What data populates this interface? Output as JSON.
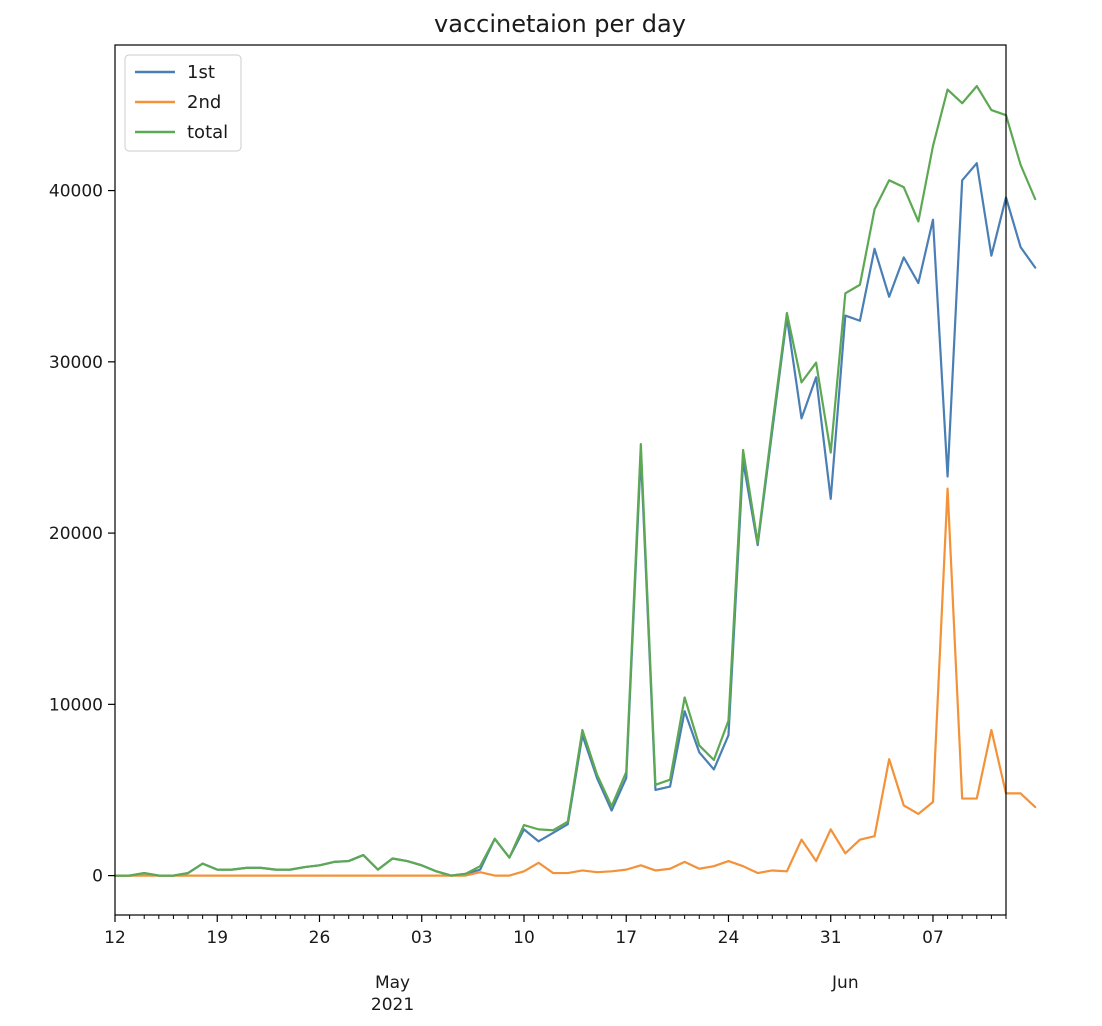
{
  "chart_data": {
    "type": "line",
    "title": "vaccinetaion per day",
    "xlabel": "",
    "ylabel": "",
    "x_start": "2021-04-12",
    "xlim": [
      "2021-04-12",
      "2021-06-12"
    ],
    "ylim": [
      -2300,
      48500
    ],
    "y_ticks": [
      0,
      10000,
      20000,
      30000,
      40000
    ],
    "y_tick_labels": [
      "0",
      "10000",
      "20000",
      "30000",
      "40000"
    ],
    "x_major_ticks": [
      {
        "date": "2021-04-12",
        "label": "12",
        "sublabel": ""
      },
      {
        "date": "2021-04-19",
        "label": "19",
        "sublabel": ""
      },
      {
        "date": "2021-04-26",
        "label": "26",
        "sublabel": ""
      },
      {
        "date": "2021-05-03",
        "label": "03",
        "sublabel": "May\n2021"
      },
      {
        "date": "2021-05-10",
        "label": "10",
        "sublabel": ""
      },
      {
        "date": "2021-05-17",
        "label": "17",
        "sublabel": ""
      },
      {
        "date": "2021-05-24",
        "label": "24",
        "sublabel": ""
      },
      {
        "date": "2021-05-31",
        "label": "31",
        "sublabel": "Jun"
      },
      {
        "date": "2021-06-07",
        "label": "07",
        "sublabel": ""
      }
    ],
    "month_labels": [
      {
        "date": "2021-05-01",
        "lines": [
          "May",
          "2021"
        ]
      },
      {
        "date": "2021-06-01",
        "lines": [
          "Jun"
        ]
      }
    ],
    "legend": {
      "position": "upper-left"
    },
    "grid": false,
    "series": [
      {
        "name": "1st",
        "color": "#4a7fb5",
        "values": [
          0,
          0,
          150,
          0,
          0,
          150,
          700,
          350,
          350,
          450,
          450,
          350,
          350,
          500,
          600,
          800,
          850,
          1200,
          350,
          1000,
          850,
          600,
          250,
          0,
          100,
          350,
          2150,
          1050,
          2700,
          2000,
          2500,
          3000,
          8200,
          5700,
          3800,
          5700,
          24600,
          5000,
          5200,
          9600,
          7200,
          6200,
          8200,
          24200,
          19300,
          26000,
          32600,
          26700,
          29100,
          22000,
          32700,
          32400,
          36600,
          33800,
          36100,
          34600,
          38300,
          23300,
          40600,
          41600,
          36200,
          39600,
          36700,
          35500
        ]
      },
      {
        "name": "2nd",
        "color": "#f39238",
        "values": [
          0,
          0,
          0,
          0,
          0,
          0,
          0,
          0,
          0,
          0,
          0,
          0,
          0,
          0,
          0,
          0,
          0,
          0,
          0,
          0,
          0,
          0,
          0,
          0,
          0,
          200,
          0,
          0,
          250,
          750,
          150,
          150,
          300,
          200,
          250,
          350,
          600,
          300,
          400,
          800,
          400,
          550,
          850,
          550,
          150,
          300,
          250,
          2100,
          850,
          2700,
          1300,
          2100,
          2300,
          6800,
          4100,
          3600,
          4300,
          22600,
          4500,
          4500,
          8500,
          4800,
          4800,
          4000
        ]
      },
      {
        "name": "total",
        "color": "#5da852",
        "values": [
          0,
          0,
          150,
          0,
          0,
          150,
          700,
          350,
          350,
          450,
          450,
          350,
          350,
          500,
          600,
          800,
          850,
          1200,
          350,
          1000,
          850,
          600,
          250,
          0,
          100,
          550,
          2150,
          1050,
          2950,
          2700,
          2650,
          3150,
          8500,
          5900,
          4050,
          6050,
          25200,
          5300,
          5600,
          10400,
          7600,
          6750,
          9050,
          24850,
          19450,
          26300,
          32850,
          28800,
          29950,
          24700,
          34000,
          34500,
          38900,
          40600,
          40200,
          38200,
          42600,
          45900,
          45100,
          46100,
          44700,
          44400,
          41500,
          39500
        ]
      }
    ]
  }
}
